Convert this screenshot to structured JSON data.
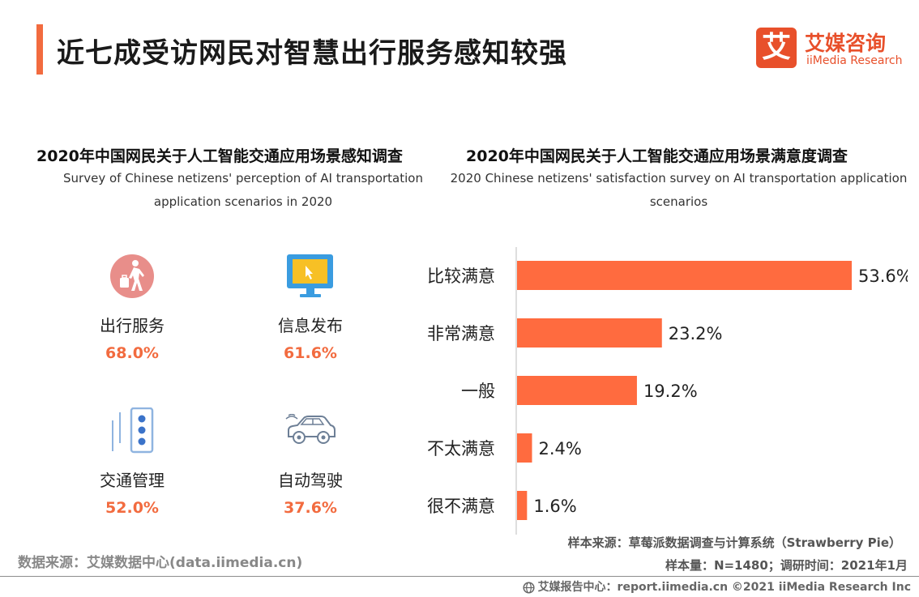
{
  "colors": {
    "accent": "#f26b3f",
    "bar": "#ff6b3f",
    "value": "#f26b3f",
    "logo": "#e8502b"
  },
  "header": {
    "title": "近七成受访网民对智慧出行服务感知较强"
  },
  "logo": {
    "mark": "艾",
    "cn": "艾媒咨询",
    "en": "iiMedia Research"
  },
  "left_panel": {
    "title_cn": "2020年中国网民关于人工智能交通应用场景感知调查",
    "title_en": "Survey of Chinese netizens' perception of AI transportation application scenarios in 2020"
  },
  "right_panel": {
    "title_cn": "2020年中国网民关于人工智能交通应用场景满意度调查",
    "title_en": "2020 Chinese netizens' satisfaction survey on AI transportation application scenarios"
  },
  "chart_data": [
    {
      "type": "table",
      "title": "2020年中国网民关于人工智能交通应用场景感知调查",
      "subtitle": "Survey of Chinese netizens' perception of AI transportation application scenarios in 2020",
      "categories": [
        "出行服务",
        "信息发布",
        "交通管理",
        "自动驾驶"
      ],
      "values": [
        68.0,
        61.6,
        52.0,
        37.6
      ],
      "value_labels": [
        "68.0%",
        "61.6%",
        "52.0%",
        "37.6%"
      ],
      "icons": [
        "walking-traveler-icon",
        "monitor-cursor-icon",
        "traffic-light-icon",
        "car-icon"
      ]
    },
    {
      "type": "bar",
      "orientation": "horizontal",
      "title": "2020年中国网民关于人工智能交通应用场景满意度调查",
      "subtitle": "2020 Chinese netizens' satisfaction survey on AI transportation application scenarios",
      "categories": [
        "比较满意",
        "非常满意",
        "一般",
        "不太满意",
        "很不满意"
      ],
      "values": [
        53.6,
        23.2,
        19.2,
        2.4,
        1.6
      ],
      "value_labels": [
        "53.6%",
        "23.2%",
        "19.2%",
        "2.4%",
        "1.6%"
      ],
      "xlim": [
        0,
        53.6
      ],
      "grid": false,
      "legend": "none"
    }
  ],
  "sources": {
    "data_source": "数据来源：艾媒数据中心(data.iimedia.cn)",
    "sample_source": "样本来源：草莓派数据调查与计算系统（Strawberry Pie）",
    "sample_size": "样本量：N=1480；调研时间：2021年1月",
    "footer": "艾媒报告中心：report.iimedia.cn  ©2021  iiMedia Research  Inc"
  }
}
